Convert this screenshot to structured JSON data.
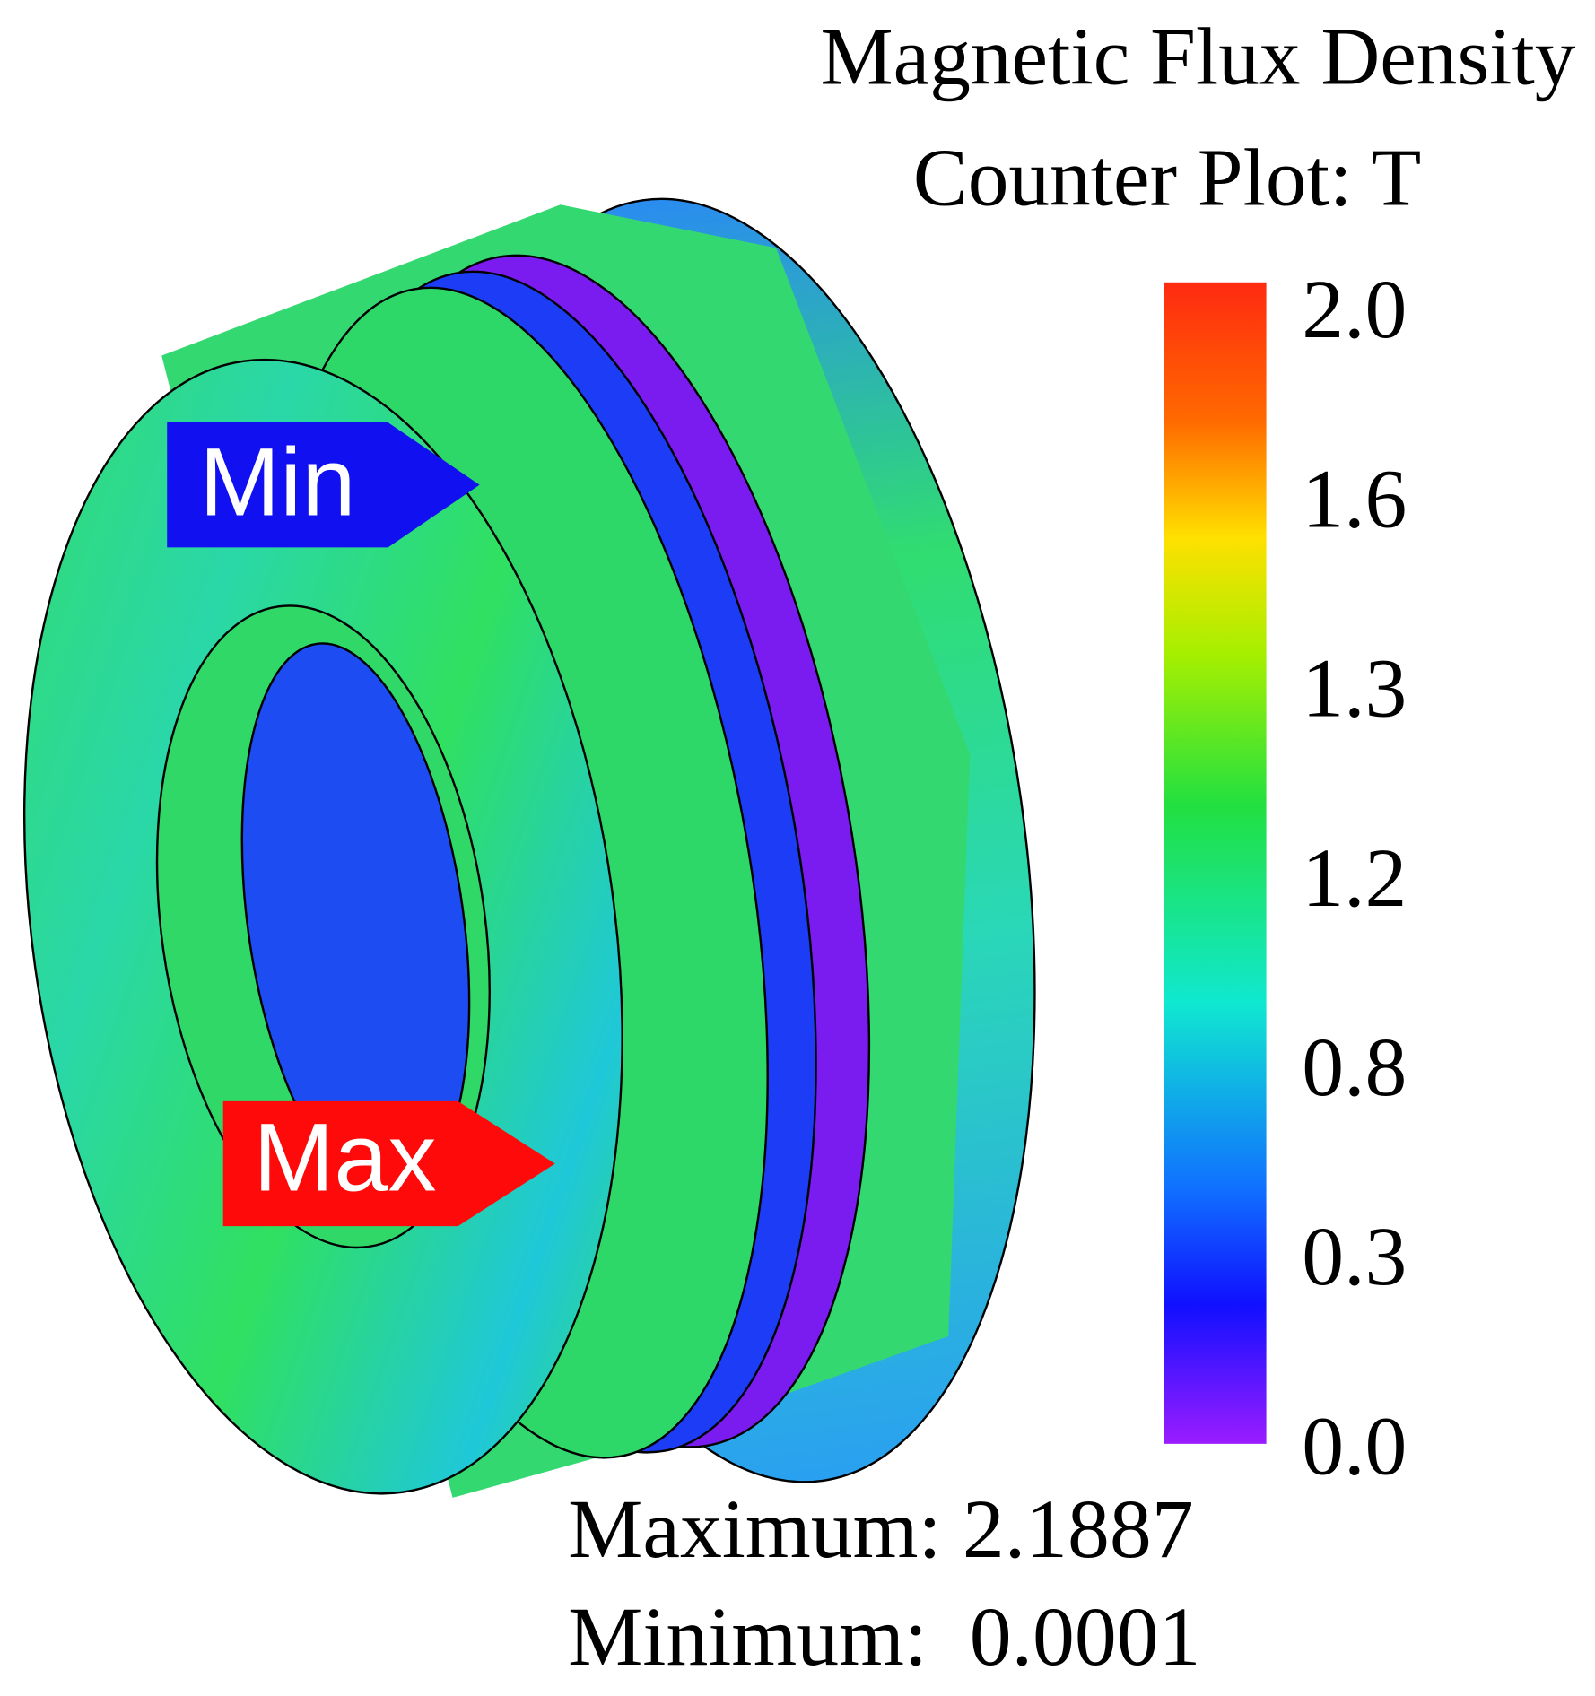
{
  "title": {
    "line1": "Magnetic Flux Density",
    "line2": "Counter Plot: T"
  },
  "colorbar": {
    "labels": [
      "2.0",
      "1.6",
      "1.3",
      "1.2",
      "0.8",
      "0.3",
      "0.0"
    ]
  },
  "markers": {
    "min": "Min",
    "max": "Max"
  },
  "summary": {
    "maximum": "Maximum: 2.1887",
    "minimum": "Minimum:  0.0001"
  }
}
